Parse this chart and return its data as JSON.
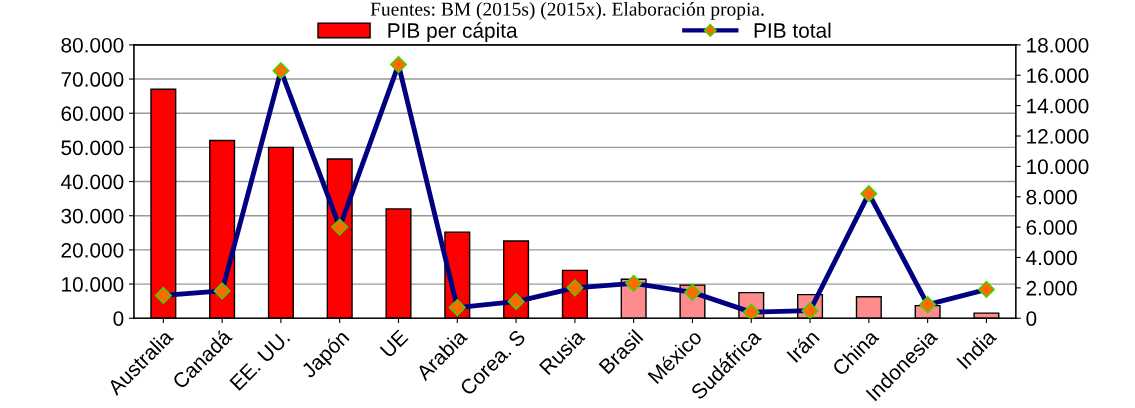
{
  "chart_data": {
    "type": "bar",
    "annotations": [
      "Fuentes: BM (2015s) (2015x). Elaboración propia."
    ],
    "categories": [
      "Australia",
      "Canadá",
      "EE. UU.",
      "Japón",
      "UE",
      "Arabia",
      "Corea. S",
      "Rusia",
      "Brasil",
      "México",
      "Sudáfrica",
      "Irán",
      "China",
      "Indonesia",
      "India"
    ],
    "series": [
      {
        "name": "PIB per cápita",
        "color": "#ff0000",
        "colors": [
          "#ff0000",
          "#ff0000",
          "#ff0000",
          "#ff0000",
          "#ff0000",
          "#ff0000",
          "#ff0000",
          "#ff0000",
          "#ff8c8c",
          "#ff8c8c",
          "#ff8c8c",
          "#ff8c8c",
          "#ff8c8c",
          "#ff8c8c",
          "#ff8c8c"
        ],
        "values": [
          67000,
          52000,
          50000,
          46600,
          32000,
          25200,
          22600,
          14000,
          11400,
          9700,
          7500,
          6900,
          6300,
          3700,
          1500
        ]
      },
      {
        "name": "PIB total",
        "type": "line",
        "axis": "y2",
        "color": "#000080",
        "marker": "diamond",
        "values": [
          1500,
          1800,
          16300,
          6000,
          16700,
          700,
          1100,
          2000,
          2300,
          1700,
          400,
          500,
          8200,
          900,
          1900
        ]
      }
    ],
    "ylim": [
      0,
      80000
    ],
    "yticks": [
      {
        "value": 0,
        "label": "0"
      },
      {
        "value": 10000,
        "label": "10.000"
      },
      {
        "value": 20000,
        "label": "20.000"
      },
      {
        "value": 30000,
        "label": "30.000"
      },
      {
        "value": 40000,
        "label": "40.000"
      },
      {
        "value": 50000,
        "label": "50.000"
      },
      {
        "value": 60000,
        "label": "60.000"
      },
      {
        "value": 70000,
        "label": "70.000"
      },
      {
        "value": 80000,
        "label": "80.000"
      }
    ],
    "y2lim": [
      0,
      18000
    ],
    "y2ticks": [
      {
        "value": 0,
        "label": "0"
      },
      {
        "value": 2000,
        "label": "2.000"
      },
      {
        "value": 4000,
        "label": "4.000"
      },
      {
        "value": 6000,
        "label": "6.000"
      },
      {
        "value": 8000,
        "label": "8.000"
      },
      {
        "value": 10000,
        "label": "10.000"
      },
      {
        "value": 12000,
        "label": "12.000"
      },
      {
        "value": 14000,
        "label": "14.000"
      },
      {
        "value": 16000,
        "label": "16.000"
      },
      {
        "value": 18000,
        "label": "18.000"
      }
    ],
    "grid": "y",
    "legend": "top"
  }
}
